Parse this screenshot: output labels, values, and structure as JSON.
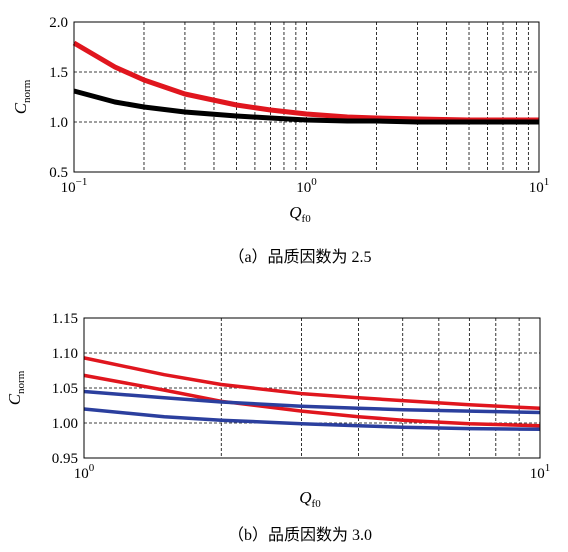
{
  "chart_data": [
    {
      "type": "line",
      "xscale": "log",
      "xlim": [
        0.1,
        10
      ],
      "ylim": [
        0.5,
        2.0
      ],
      "yticks": [
        "0.5",
        "1.0",
        "1.5",
        "2.0"
      ],
      "xticks": [
        {
          "base": "10",
          "exp": "−1"
        },
        {
          "base": "10",
          "exp": "0"
        },
        {
          "base": "10",
          "exp": "1"
        }
      ],
      "xlabel": {
        "main": "Q",
        "sub": "f0"
      },
      "ylabel": {
        "main": "C",
        "sub": "norm"
      },
      "grid": true,
      "caption": "（a）品质因数为 2.5",
      "series": [
        {
          "color": "#e0161e",
          "x": [
            0.1,
            0.15,
            0.2,
            0.3,
            0.5,
            0.7,
            1.0,
            1.5,
            2.0,
            3.0,
            5.0,
            10.0
          ],
          "y": [
            1.79,
            1.55,
            1.42,
            1.28,
            1.17,
            1.12,
            1.08,
            1.05,
            1.04,
            1.03,
            1.02,
            1.02
          ]
        },
        {
          "color": "#000000",
          "x": [
            0.1,
            0.15,
            0.2,
            0.3,
            0.5,
            0.7,
            1.0,
            1.5,
            2.0,
            3.0,
            5.0,
            10.0
          ],
          "y": [
            1.31,
            1.2,
            1.15,
            1.1,
            1.06,
            1.04,
            1.02,
            1.01,
            1.01,
            1.0,
            1.0,
            1.0
          ]
        }
      ]
    },
    {
      "type": "line",
      "xscale": "log",
      "xlim": [
        1,
        10
      ],
      "ylim": [
        0.95,
        1.15
      ],
      "yticks": [
        "0.95",
        "1.00",
        "1.05",
        "1.10",
        "1.15"
      ],
      "xticks": [
        {
          "base": "10",
          "exp": "0"
        },
        {
          "base": "10",
          "exp": "1"
        }
      ],
      "xlabel": {
        "main": "Q",
        "sub": "f0"
      },
      "ylabel": {
        "main": "C",
        "sub": "norm"
      },
      "grid": true,
      "caption": "（b）品质因数为 3.0",
      "series": [
        {
          "color": "#e0161e",
          "x": [
            1,
            1.5,
            2,
            3,
            4,
            5,
            7,
            10
          ],
          "y": [
            1.093,
            1.069,
            1.055,
            1.042,
            1.036,
            1.032,
            1.026,
            1.021
          ]
        },
        {
          "color": "#e0161e",
          "x": [
            1,
            1.5,
            2,
            3,
            4,
            5,
            7,
            10
          ],
          "y": [
            1.068,
            1.047,
            1.031,
            1.017,
            1.009,
            1.004,
            0.999,
            0.996
          ]
        },
        {
          "color": "#2b3f9e",
          "x": [
            1,
            1.5,
            2,
            3,
            4,
            5,
            7,
            10
          ],
          "y": [
            1.045,
            1.036,
            1.03,
            1.024,
            1.021,
            1.019,
            1.017,
            1.015
          ]
        },
        {
          "color": "#2b3f9e",
          "x": [
            1,
            1.5,
            2,
            3,
            4,
            5,
            7,
            10
          ],
          "y": [
            1.02,
            1.009,
            1.004,
            0.999,
            0.996,
            0.994,
            0.992,
            0.991
          ]
        }
      ]
    }
  ]
}
